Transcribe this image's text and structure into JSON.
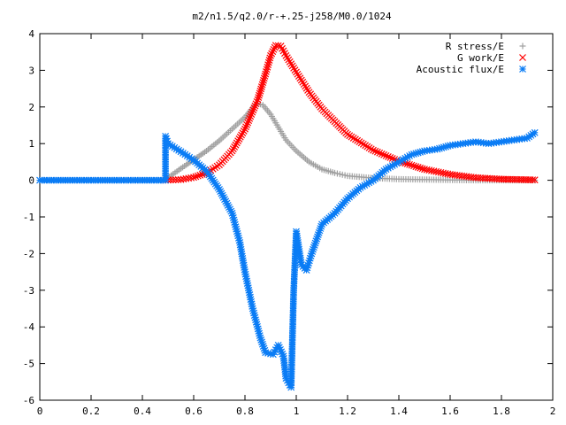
{
  "chart_data": {
    "type": "scatter",
    "title": "m2/n1.5/q2.0/r-+.25-j258/M0.0/1024",
    "xlabel": "",
    "ylabel": "",
    "xlim": [
      0,
      2
    ],
    "ylim": [
      -6,
      4
    ],
    "x_ticks": [
      "0",
      "0.2",
      "0.4",
      "0.6",
      "0.8",
      "1",
      "1.2",
      "1.4",
      "1.6",
      "1.8",
      "2"
    ],
    "y_ticks": [
      "-6",
      "-5",
      "-4",
      "-3",
      "-2",
      "-1",
      "0",
      "1",
      "2",
      "3",
      "4"
    ],
    "grid": false,
    "legend_position": "top-right",
    "series": [
      {
        "name": "R stress/E",
        "marker": "plus",
        "color": "#a0a0a0",
        "points": [
          [
            0.49,
            0.02
          ],
          [
            0.55,
            0.32
          ],
          [
            0.6,
            0.56
          ],
          [
            0.65,
            0.8
          ],
          [
            0.7,
            1.08
          ],
          [
            0.75,
            1.4
          ],
          [
            0.8,
            1.72
          ],
          [
            0.83,
            1.98
          ],
          [
            0.85,
            2.1
          ],
          [
            0.87,
            2.05
          ],
          [
            0.9,
            1.8
          ],
          [
            0.93,
            1.45
          ],
          [
            0.96,
            1.1
          ],
          [
            1.0,
            0.8
          ],
          [
            1.05,
            0.5
          ],
          [
            1.1,
            0.3
          ],
          [
            1.15,
            0.2
          ],
          [
            1.2,
            0.12
          ],
          [
            1.3,
            0.06
          ],
          [
            1.4,
            0.03
          ],
          [
            1.5,
            0.02
          ],
          [
            1.6,
            0.01
          ],
          [
            1.7,
            0.0
          ],
          [
            1.8,
            0.0
          ],
          [
            1.93,
            0.0
          ]
        ]
      },
      {
        "name": "G work/E",
        "marker": "cross",
        "color": "#ff0000",
        "points": [
          [
            0.49,
            0.0
          ],
          [
            0.55,
            0.02
          ],
          [
            0.6,
            0.08
          ],
          [
            0.65,
            0.2
          ],
          [
            0.7,
            0.42
          ],
          [
            0.75,
            0.8
          ],
          [
            0.8,
            1.4
          ],
          [
            0.85,
            2.2
          ],
          [
            0.88,
            2.9
          ],
          [
            0.9,
            3.4
          ],
          [
            0.92,
            3.68
          ],
          [
            0.94,
            3.66
          ],
          [
            0.96,
            3.4
          ],
          [
            1.0,
            2.95
          ],
          [
            1.05,
            2.4
          ],
          [
            1.1,
            1.95
          ],
          [
            1.15,
            1.6
          ],
          [
            1.2,
            1.25
          ],
          [
            1.3,
            0.82
          ],
          [
            1.4,
            0.52
          ],
          [
            1.5,
            0.3
          ],
          [
            1.6,
            0.16
          ],
          [
            1.7,
            0.07
          ],
          [
            1.8,
            0.03
          ],
          [
            1.93,
            0.01
          ]
        ]
      },
      {
        "name": "Acoustic flux/E",
        "marker": "star",
        "color": "#0a7cf5",
        "points": [
          [
            0.0,
            0.0
          ],
          [
            0.1,
            0.0
          ],
          [
            0.2,
            0.0
          ],
          [
            0.3,
            0.0
          ],
          [
            0.4,
            0.0
          ],
          [
            0.49,
            0.0
          ],
          [
            0.49,
            1.2
          ],
          [
            0.5,
            1.0
          ],
          [
            0.55,
            0.78
          ],
          [
            0.6,
            0.55
          ],
          [
            0.65,
            0.25
          ],
          [
            0.7,
            -0.25
          ],
          [
            0.75,
            -0.9
          ],
          [
            0.78,
            -1.7
          ],
          [
            0.8,
            -2.5
          ],
          [
            0.83,
            -3.5
          ],
          [
            0.86,
            -4.3
          ],
          [
            0.88,
            -4.7
          ],
          [
            0.91,
            -4.75
          ],
          [
            0.93,
            -4.5
          ],
          [
            0.95,
            -4.8
          ],
          [
            0.96,
            -5.4
          ],
          [
            0.98,
            -5.65
          ],
          [
            0.99,
            -3.0
          ],
          [
            1.0,
            -1.4
          ],
          [
            1.02,
            -2.3
          ],
          [
            1.04,
            -2.45
          ],
          [
            1.06,
            -2.0
          ],
          [
            1.1,
            -1.2
          ],
          [
            1.15,
            -0.9
          ],
          [
            1.2,
            -0.5
          ],
          [
            1.25,
            -0.2
          ],
          [
            1.3,
            0.0
          ],
          [
            1.35,
            0.3
          ],
          [
            1.4,
            0.5
          ],
          [
            1.45,
            0.7
          ],
          [
            1.5,
            0.8
          ],
          [
            1.55,
            0.85
          ],
          [
            1.6,
            0.95
          ],
          [
            1.65,
            1.0
          ],
          [
            1.7,
            1.05
          ],
          [
            1.75,
            1.0
          ],
          [
            1.8,
            1.05
          ],
          [
            1.85,
            1.1
          ],
          [
            1.9,
            1.15
          ],
          [
            1.93,
            1.3
          ]
        ]
      }
    ]
  }
}
